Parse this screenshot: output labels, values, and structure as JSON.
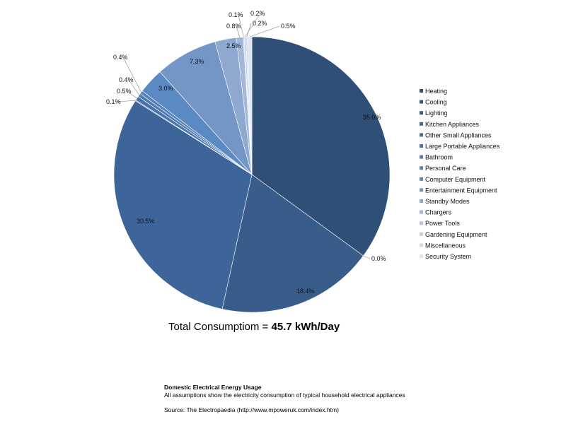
{
  "chart_data": {
    "type": "pie",
    "start_angle_deg": 0,
    "direction": "clockwise",
    "legend_position": "right",
    "slices": [
      {
        "name": "Heating",
        "value": 35.0,
        "label": "35.0%",
        "color": "#2f4f77"
      },
      {
        "name": "Cooling",
        "value": 0.0,
        "label": "0.0%",
        "color": "#35577f"
      },
      {
        "name": "Lighting",
        "value": 18.4,
        "label": "18.4%",
        "color": "#385d8a"
      },
      {
        "name": "Kitchen Appliances",
        "value": 30.5,
        "label": "30.5%",
        "color": "#3e6599"
      },
      {
        "name": "Other Small Appliances",
        "value": 0.1,
        "label": "0.1%",
        "color": "#436da3"
      },
      {
        "name": "Large Portable Appliances",
        "value": 0.5,
        "label": "0.5%",
        "color": "#4874ac"
      },
      {
        "name": "Bathroom",
        "value": 0.4,
        "label": "0.4%",
        "color": "#4e7bb4"
      },
      {
        "name": "Personal Care",
        "value": 0.4,
        "label": "0.4%",
        "color": "#5582bb"
      },
      {
        "name": "Computer Equipment",
        "value": 3.0,
        "label": "3.0%",
        "color": "#5b89c1"
      },
      {
        "name": "Entertainment Equipment",
        "value": 7.3,
        "label": "7.3%",
        "color": "#7496c6"
      },
      {
        "name": "Standby Modes",
        "value": 2.5,
        "label": "2.5%",
        "color": "#8ea8d0"
      },
      {
        "name": "Chargers",
        "value": 0.8,
        "label": "0.8%",
        "color": "#a2b7da"
      },
      {
        "name": "Power Tools",
        "value": 0.1,
        "label": "0.1%",
        "color": "#b3c4e2"
      },
      {
        "name": "Gardening Equipment",
        "value": 0.2,
        "label": "0.2%",
        "color": "#c2cfe8"
      },
      {
        "name": "Miscellaneous",
        "value": 0.2,
        "label": "0.2%",
        "color": "#cfd9ee"
      },
      {
        "name": "Security System",
        "value": 0.5,
        "label": "0.5%",
        "color": "#dde4f3"
      }
    ]
  },
  "total": {
    "prefix": "Total Consumptiom = ",
    "value": "45.7 kWh/Day"
  },
  "footer": {
    "title": "Domestic Electrical Energy Usage",
    "description": "All assumptions show the electricity consumption of typical household electrical appliances",
    "source": "Source:  The Electropaedia (http://www.mpoweruk.com/index.htm)"
  }
}
